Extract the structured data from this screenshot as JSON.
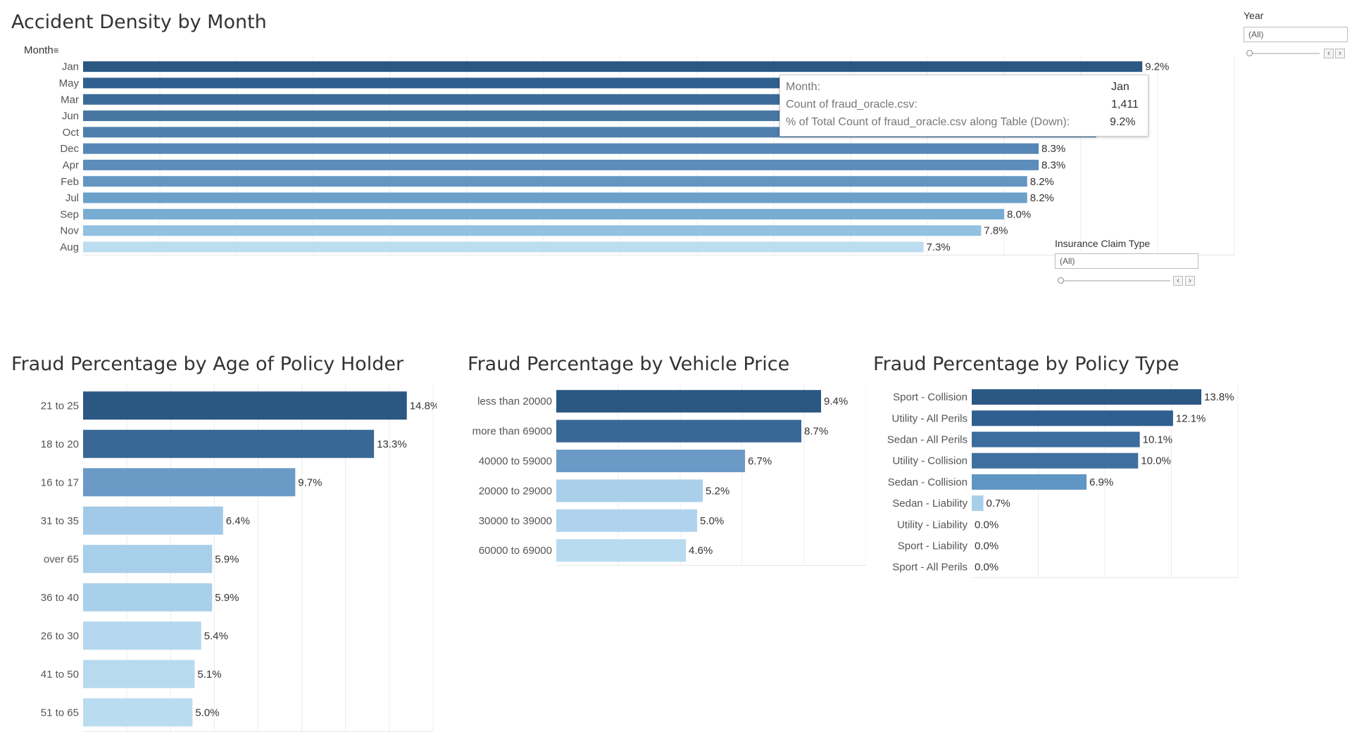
{
  "filters": {
    "year": {
      "title": "Year",
      "value": "(All)"
    },
    "claim_type": {
      "title": "Insurance Claim Type",
      "value": "(All)"
    }
  },
  "month_sort_label": "Month",
  "tooltip": {
    "month_label": "Month:",
    "month_value": "Jan",
    "count_label": "Count of fraud_oracle.csv:",
    "count_value": "1,411",
    "pct_label": "% of Total Count of fraud_oracle.csv along Table (Down):",
    "pct_value": "9.2%"
  },
  "colors": {
    "dark": "#2b5783",
    "mid": "#4f82b3",
    "light": "#bcdcf0"
  },
  "chart_data": [
    {
      "type": "bar",
      "title": "Accident Density by Month",
      "categories": [
        "Jan",
        "May",
        "Mar",
        "Jun",
        "Oct",
        "Dec",
        "Apr",
        "Feb",
        "Jul",
        "Sep",
        "Nov",
        "Aug"
      ],
      "values": [
        9.2,
        8.9,
        8.9,
        8.8,
        8.8,
        8.3,
        8.3,
        8.2,
        8.2,
        8.0,
        7.8,
        7.3
      ],
      "labels": [
        "9.2%",
        "",
        "",
        "",
        "",
        "8.3%",
        "8.3%",
        "8.2%",
        "8.2%",
        "8.0%",
        "7.8%",
        "7.3%"
      ],
      "colors": [
        "#2b5783",
        "#2f5f8e",
        "#3c6b99",
        "#4876a3",
        "#4f7fad",
        "#5686b5",
        "#5c8dbb",
        "#6496c2",
        "#6ba0c9",
        "#78acd2",
        "#93c1e1",
        "#bcdcf0"
      ],
      "xlim": [
        0,
        10
      ]
    },
    {
      "type": "bar",
      "title": "Fraud Percentage by Age of Policy Holder",
      "categories": [
        "21 to 25",
        "18 to 20",
        "16 to 17",
        "31 to 35",
        "over 65",
        "36 to 40",
        "26 to 30",
        "41 to 50",
        "51 to 65"
      ],
      "values": [
        14.8,
        13.3,
        9.7,
        6.4,
        5.9,
        5.9,
        5.4,
        5.1,
        5.0
      ],
      "labels": [
        "14.8%",
        "13.3%",
        "9.7%",
        "6.4%",
        "5.9%",
        "5.9%",
        "5.4%",
        "5.1%",
        "5.0%"
      ],
      "colors": [
        "#2b5783",
        "#3a6896",
        "#6b9ac6",
        "#a2cae8",
        "#a8cfea",
        "#a9d0eb",
        "#b4d7ef",
        "#b8daf0",
        "#badcf1"
      ],
      "xlim": [
        0,
        16
      ]
    },
    {
      "type": "bar",
      "title": "Fraud Percentage by Vehicle Price",
      "categories": [
        "less than 20000",
        "more than 69000",
        "40000 to 59000",
        "20000 to 29000",
        "30000 to 39000",
        "60000 to 69000"
      ],
      "values": [
        9.4,
        8.7,
        6.7,
        5.2,
        5.0,
        4.6
      ],
      "labels": [
        "9.4%",
        "8.7%",
        "6.7%",
        "5.2%",
        "5.0%",
        "4.6%"
      ],
      "colors": [
        "#2b5783",
        "#3a6896",
        "#6b9ac6",
        "#a9cfeb",
        "#afd3ed",
        "#b9dbf0"
      ],
      "xlim": [
        0,
        11
      ]
    },
    {
      "type": "bar",
      "title": "Fraud Percentage by Policy Type",
      "categories": [
        "Sport - Collision",
        "Utility - All Perils",
        "Sedan - All Perils",
        "Utility - Collision",
        "Sedan - Collision",
        "Sedan - Liability",
        "Utility - Liability",
        "Sport - Liability",
        "Sport - All Perils"
      ],
      "values": [
        13.8,
        12.1,
        10.1,
        10.0,
        6.9,
        0.7,
        0.0,
        0.0,
        0.0
      ],
      "labels": [
        "13.8%",
        "12.1%",
        "10.1%",
        "10.0%",
        "6.9%",
        "0.7%",
        "0.0%",
        "0.0%",
        "0.0%"
      ],
      "colors": [
        "#2b5783",
        "#2f5f8e",
        "#3d6d9c",
        "#3f6f9e",
        "#6096c4",
        "#a8cfea",
        "#bcdcf0",
        "#bcdcf0",
        "#bcdcf0"
      ],
      "xlim": [
        0,
        16
      ]
    }
  ]
}
